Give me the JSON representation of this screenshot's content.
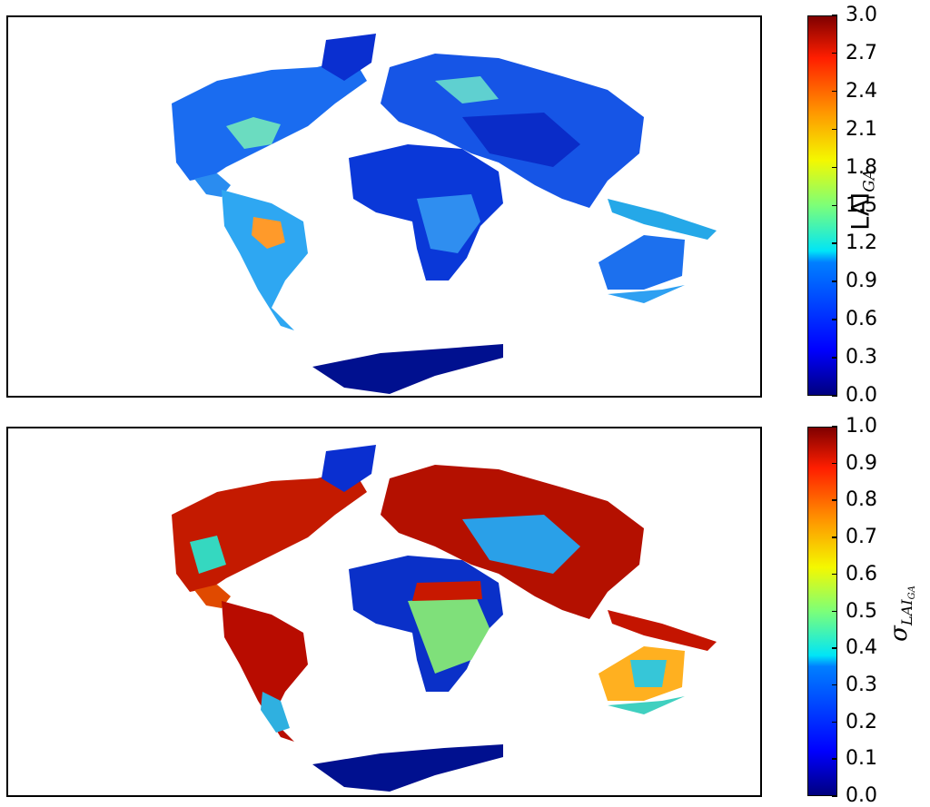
{
  "panels": [
    {
      "id": "top",
      "colorbar": {
        "label": "LAI",
        "label_sub": "GA",
        "ticks": [
          "0.0",
          "0.3",
          "0.6",
          "0.9",
          "1.2",
          "1.5",
          "1.8",
          "2.1",
          "2.4",
          "2.7",
          "3.0"
        ],
        "range": [
          0.0,
          3.0
        ],
        "colormap": "jet"
      }
    },
    {
      "id": "bottom",
      "colorbar": {
        "label": "σ",
        "label_sub": "LAI",
        "label_subsub": "GA",
        "ticks": [
          "0.0",
          "0.1",
          "0.2",
          "0.3",
          "0.4",
          "0.5",
          "0.6",
          "0.7",
          "0.8",
          "0.9",
          "1.0"
        ],
        "range": [
          0.0,
          1.0
        ],
        "colormap": "jet"
      }
    }
  ],
  "colors": {
    "ocean": "#ffffff",
    "jet_low": "#00007f",
    "jet_high": "#7f0000"
  }
}
